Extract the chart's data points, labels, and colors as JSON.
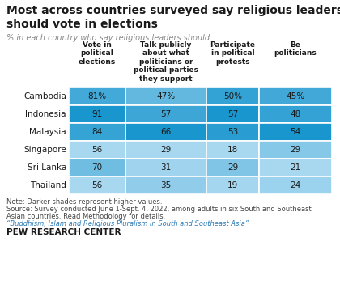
{
  "title": "Most across countries surveyed say religious leaders\nshould vote in elections",
  "subtitle": "% in each country who say religious leaders should ...",
  "columns": [
    "Vote in\npolitical\nelections",
    "Talk publicly\nabout what\npoliticians or\npolitical parties\nthey support",
    "Participate\nin political\nprotests",
    "Be\npoliticians"
  ],
  "rows": [
    {
      "country": "Cambodia",
      "values": [
        81,
        47,
        50,
        45
      ],
      "pct": [
        "81%",
        "47%",
        "50%",
        "45%"
      ]
    },
    {
      "country": "Indonesia",
      "values": [
        91,
        57,
        57,
        48
      ],
      "pct": [
        "91",
        "57",
        "57",
        "48"
      ]
    },
    {
      "country": "Malaysia",
      "values": [
        84,
        66,
        53,
        54
      ],
      "pct": [
        "84",
        "66",
        "53",
        "54"
      ]
    },
    {
      "country": "Singapore",
      "values": [
        56,
        29,
        18,
        29
      ],
      "pct": [
        "56",
        "29",
        "18",
        "29"
      ]
    },
    {
      "country": "Sri Lanka",
      "values": [
        70,
        31,
        29,
        21
      ],
      "pct": [
        "70",
        "31",
        "29",
        "21"
      ]
    },
    {
      "country": "Thailand",
      "values": [
        56,
        35,
        19,
        24
      ],
      "pct": [
        "56",
        "35",
        "19",
        "24"
      ]
    }
  ],
  "col_min": [
    56,
    29,
    18,
    21
  ],
  "col_max": [
    91,
    66,
    57,
    54
  ],
  "note": "Note: Darker shades represent higher values.",
  "source1": "Source: Survey conducted June 1-Sept. 4, 2022, among adults in six South and Southeast",
  "source2": "Asian countries. Read Methodology for details.",
  "quote": "“Buddhism, Islam and Religious Pluralism in South and Southeast Asia”",
  "branding": "PEW RESEARCH CENTER",
  "light_blue": "#a8d8f0",
  "dark_blue": "#1a96ce",
  "bg_color": "#ffffff",
  "text_color": "#1a1a1a",
  "footer_color": "#444444",
  "quote_color": "#2a7ab5"
}
